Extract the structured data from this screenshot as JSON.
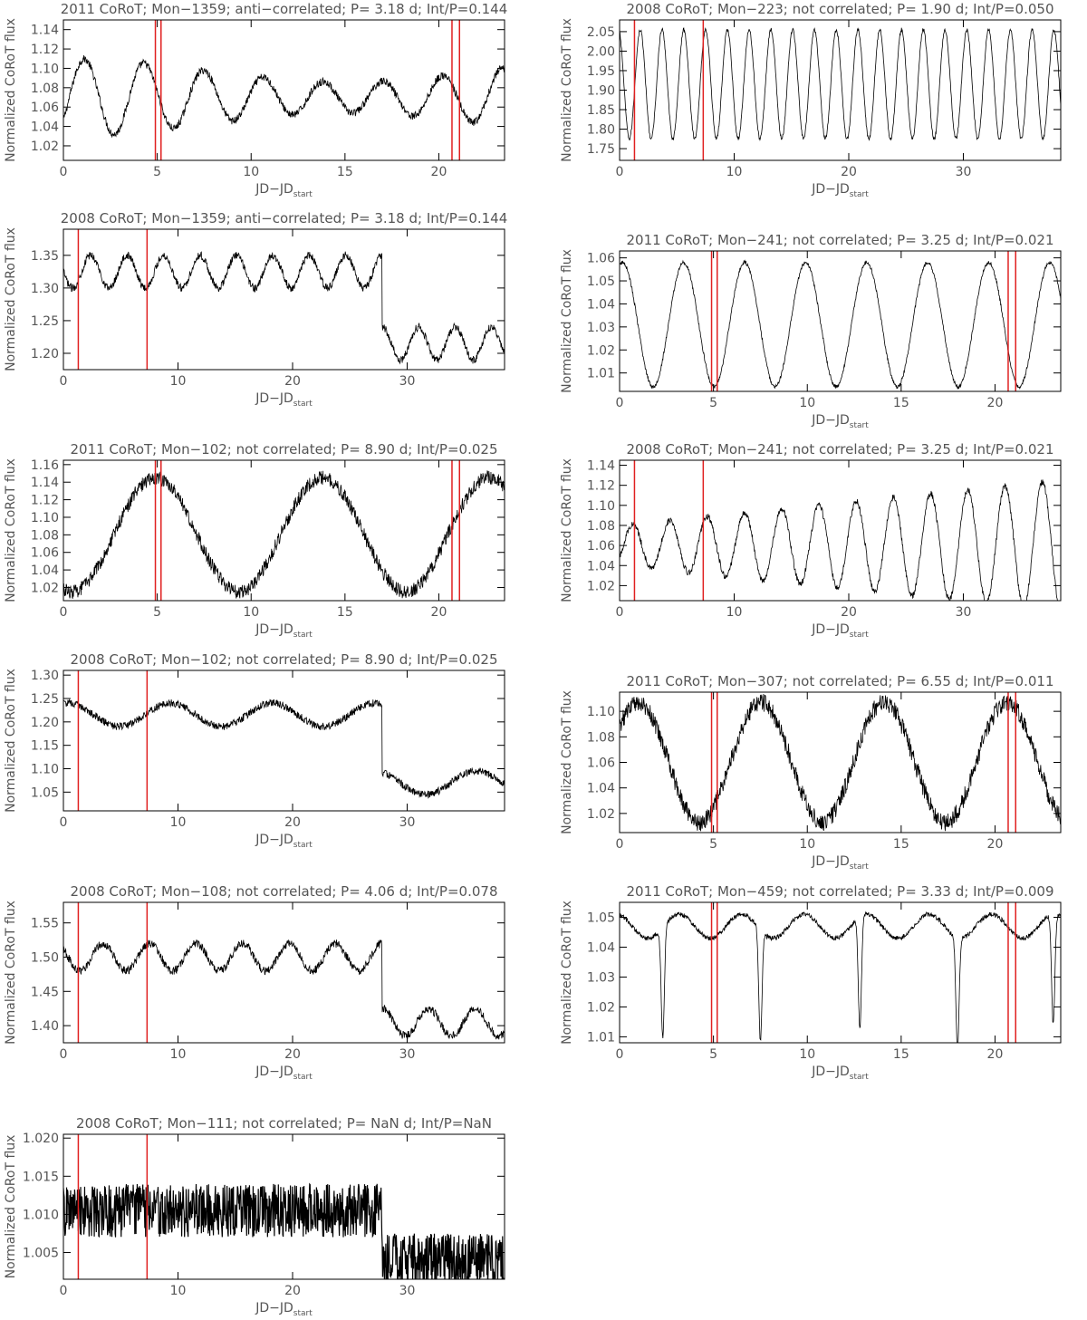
{
  "figure": {
    "colors": {
      "curve": "#000000",
      "marker": "#e02020",
      "axis": "#000000",
      "text": "#555555"
    }
  },
  "chart_data": [
    {
      "type": "line",
      "title": "2011 CoRoT; Mon−1359; anti−correlated; P= 3.18 d; Int/P=0.144",
      "xlabel": "JD−JD",
      "xlabel_sub": "start",
      "ylabel": "Normalized CoRoT flux",
      "xlim": [
        0,
        23.5
      ],
      "ylim": [
        1.005,
        1.15
      ],
      "xticks": [
        0,
        5,
        10,
        15,
        20
      ],
      "yticks": [
        1.02,
        1.04,
        1.06,
        1.08,
        1.1,
        1.12,
        1.14
      ],
      "ytick_decimals": 2,
      "markers": [
        4.9,
        5.2,
        20.7,
        21.1
      ],
      "model": {
        "kind": "sine",
        "mean": 1.07,
        "amp": 0.04,
        "period": 3.18,
        "phase": 0.9,
        "noise": 0.004,
        "mod": 0.6,
        "modPeriod": 30
      }
    },
    {
      "type": "line",
      "title": "2008 CoRoT; Mon−223; not correlated; P= 1.90 d; Int/P=0.050",
      "xlabel": "JD−JD",
      "xlabel_sub": "start",
      "ylabel": "Normalized CoRoT flux",
      "xlim": [
        0,
        38.5
      ],
      "ylim": [
        1.72,
        2.08
      ],
      "xticks": [
        0,
        10,
        20,
        30
      ],
      "yticks": [
        1.75,
        1.8,
        1.85,
        1.9,
        1.95,
        2.0,
        2.05
      ],
      "ytick_decimals": 2,
      "markers": [
        1.3,
        7.3
      ],
      "model": {
        "kind": "sine",
        "mean": 1.915,
        "amp": 0.14,
        "period": 1.9,
        "phase": 0.3,
        "noise": 0.005
      }
    },
    {
      "type": "line",
      "title": "2008 CoRoT; Mon−1359; anti−correlated; P= 3.18 d; Int/P=0.144",
      "xlabel": "JD−JD",
      "xlabel_sub": "start",
      "ylabel": "Normalized CoRoT flux",
      "xlim": [
        0,
        38.5
      ],
      "ylim": [
        1.175,
        1.39
      ],
      "xticks": [
        0,
        10,
        20,
        30
      ],
      "yticks": [
        1.2,
        1.25,
        1.3,
        1.35
      ],
      "ytick_decimals": 2,
      "markers": [
        1.3,
        7.3
      ],
      "model": {
        "kind": "sine",
        "mean": 1.325,
        "amp": 0.025,
        "period": 3.18,
        "phase": 0.5,
        "noise": 0.006,
        "dropAt": 27.8,
        "dropTo": 1.215
      }
    },
    {
      "type": "line",
      "title": "2011 CoRoT; Mon−241; not correlated; P= 3.25 d; Int/P=0.021",
      "xlabel": "JD−JD",
      "xlabel_sub": "start",
      "ylabel": "Normalized CoRoT flux",
      "xlim": [
        0,
        23.5
      ],
      "ylim": [
        1.002,
        1.063
      ],
      "xticks": [
        0,
        5,
        10,
        15,
        20
      ],
      "yticks": [
        1.01,
        1.02,
        1.03,
        1.04,
        1.05,
        1.06
      ],
      "ytick_decimals": 2,
      "markers": [
        4.9,
        5.2,
        20.7,
        21.1
      ],
      "model": {
        "kind": "sine",
        "mean": 1.031,
        "amp": 0.027,
        "period": 3.25,
        "phase": 0.2,
        "noise": 0.0008
      }
    },
    {
      "type": "line",
      "title": "2011 CoRoT; Mon−102; not correlated; P= 8.90 d; Int/P=0.025",
      "xlabel": "JD−JD",
      "xlabel_sub": "start",
      "ylabel": "Normalized CoRoT flux",
      "xlim": [
        0,
        23.5
      ],
      "ylim": [
        1.005,
        1.165
      ],
      "xticks": [
        0,
        5,
        10,
        15,
        20
      ],
      "yticks": [
        1.02,
        1.04,
        1.06,
        1.08,
        1.1,
        1.12,
        1.14,
        1.16
      ],
      "ytick_decimals": 2,
      "markers": [
        4.9,
        5.2,
        20.7,
        21.1
      ],
      "model": {
        "kind": "sine",
        "mean": 1.08,
        "amp": 0.065,
        "period": 8.9,
        "phase": 0.7,
        "noise": 0.008
      }
    },
    {
      "type": "line",
      "title": "2008 CoRoT; Mon−241; not correlated; P= 3.25 d; Int/P=0.021",
      "xlabel": "JD−JD",
      "xlabel_sub": "start",
      "ylabel": "Normalized CoRoT flux",
      "xlim": [
        0,
        38.5
      ],
      "ylim": [
        1.005,
        1.145
      ],
      "xticks": [
        0,
        10,
        20,
        30
      ],
      "yticks": [
        1.02,
        1.04,
        1.06,
        1.08,
        1.1,
        1.12,
        1.14
      ],
      "ytick_decimals": 2,
      "markers": [
        1.3,
        7.3
      ],
      "model": {
        "kind": "sine",
        "mean": 1.06,
        "amp": 0.02,
        "ampGrow": 0.045,
        "period": 3.25,
        "phase": 0.9,
        "noise": 0.003
      }
    },
    {
      "type": "line",
      "title": "2008 CoRoT; Mon−102; not correlated; P= 8.90 d; Int/P=0.025",
      "xlabel": "JD−JD",
      "xlabel_sub": "start",
      "ylabel": "Normalized CoRoT flux",
      "xlim": [
        0,
        38.5
      ],
      "ylim": [
        1.01,
        1.31
      ],
      "xticks": [
        0,
        10,
        20,
        30
      ],
      "yticks": [
        1.05,
        1.1,
        1.15,
        1.2,
        1.25,
        1.3
      ],
      "ytick_decimals": 2,
      "markers": [
        1.3,
        7.3
      ],
      "model": {
        "kind": "sine",
        "mean": 1.215,
        "amp": 0.025,
        "period": 8.9,
        "phase": 0.2,
        "noise": 0.008,
        "dropAt": 27.8,
        "dropTo": 1.07
      }
    },
    {
      "type": "line",
      "title": "2011 CoRoT; Mon−307; not correlated; P= 6.55 d; Int/P=0.011",
      "xlabel": "JD−JD",
      "xlabel_sub": "start",
      "ylabel": "Normalized CoRoT flux",
      "xlim": [
        0,
        23.5
      ],
      "ylim": [
        1.005,
        1.115
      ],
      "xticks": [
        0,
        5,
        10,
        15,
        20
      ],
      "yticks": [
        1.02,
        1.04,
        1.06,
        1.08,
        1.1
      ],
      "ytick_decimals": 2,
      "markers": [
        4.9,
        5.2,
        20.7,
        21.1
      ],
      "model": {
        "kind": "sine",
        "mean": 1.06,
        "amp": 0.047,
        "period": 6.55,
        "phase": 0.1,
        "noise": 0.007
      }
    },
    {
      "type": "line",
      "title": "2008 CoRoT; Mon−108; not correlated; P= 4.06 d; Int/P=0.078",
      "xlabel": "JD−JD",
      "xlabel_sub": "start",
      "ylabel": "Normalized CoRoT flux",
      "xlim": [
        0,
        38.5
      ],
      "ylim": [
        1.375,
        1.58
      ],
      "xticks": [
        0,
        10,
        20,
        30
      ],
      "yticks": [
        1.4,
        1.45,
        1.5,
        1.55
      ],
      "ytick_decimals": 2,
      "markers": [
        1.3,
        7.3
      ],
      "model": {
        "kind": "sine",
        "mean": 1.5,
        "amp": 0.02,
        "period": 4.06,
        "phase": 0.4,
        "noise": 0.006,
        "dropAt": 27.8,
        "dropTo": 1.405
      }
    },
    {
      "type": "line",
      "title": "2011 CoRoT; Mon−459; not correlated; P= 3.33 d; Int/P=0.009",
      "xlabel": "JD−JD",
      "xlabel_sub": "start",
      "ylabel": "Normalized CoRoT flux",
      "xlim": [
        0,
        23.5
      ],
      "ylim": [
        1.008,
        1.055
      ],
      "xticks": [
        0,
        5,
        10,
        15,
        20
      ],
      "yticks": [
        1.01,
        1.02,
        1.03,
        1.04,
        1.05
      ],
      "ytick_decimals": 2,
      "markers": [
        4.9,
        5.2,
        20.7,
        21.1
      ],
      "model": {
        "kind": "dips",
        "mean": 1.047,
        "amp": 0.004,
        "period": 3.33,
        "phase": 0.3,
        "noise": 0.0008,
        "dips": [
          2.3,
          7.5,
          12.8,
          18.0,
          23.1
        ],
        "dipDepth": 0.037
      }
    },
    {
      "type": "line",
      "title": "2008 CoRoT; Mon−111; not correlated; P= NaN d; Int/P=NaN",
      "xlabel": "JD−JD",
      "xlabel_sub": "start",
      "ylabel": "Normalized CoRoT flux",
      "xlim": [
        0,
        38.5
      ],
      "ylim": [
        1.0015,
        1.0205
      ],
      "xticks": [
        0,
        10,
        20,
        30
      ],
      "yticks": [
        1.005,
        1.01,
        1.015,
        1.02
      ],
      "ytick_decimals": 3,
      "markers": [
        1.3,
        7.3
      ],
      "model": {
        "kind": "noise",
        "mean": 1.0105,
        "amp": 0,
        "period": 1,
        "phase": 0,
        "noise": 0.0035,
        "dropAt": 27.8,
        "dropTo": 1.004
      }
    }
  ]
}
